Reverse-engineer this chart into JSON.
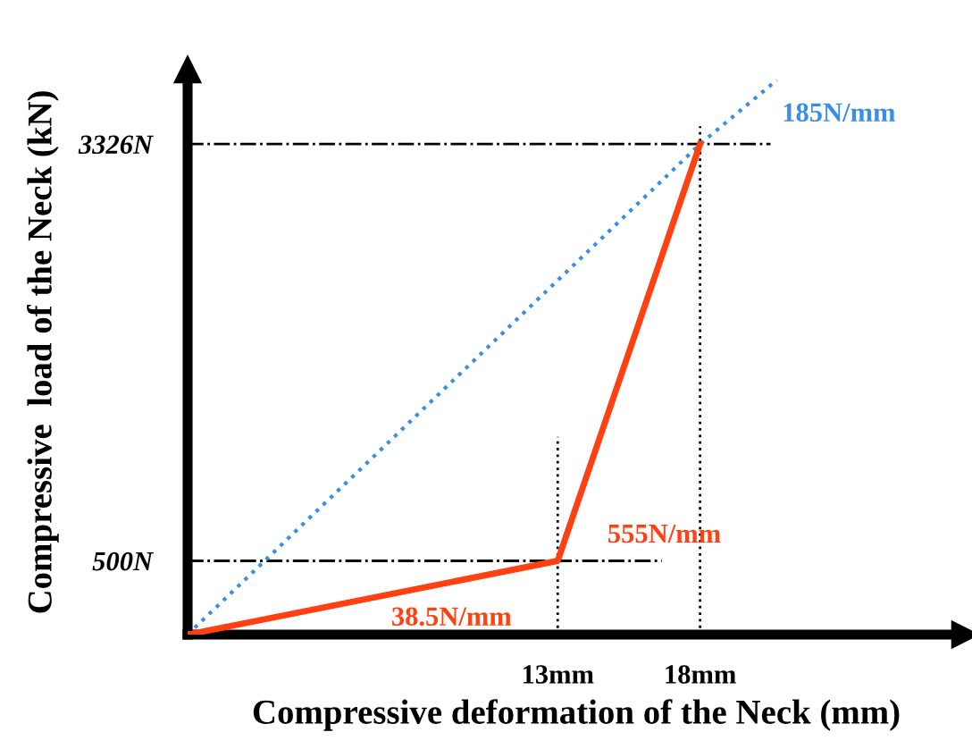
{
  "chart_data": {
    "type": "line",
    "xlabel": "Compressive deformation of the Neck (mm)",
    "ylabel": "Compressive  load of the Neck (kN)",
    "series": [
      {
        "color": "#3a8ee6",
        "x": [
          0,
          18,
          20.7
        ],
        "values": [
          0,
          3326,
          3760
        ],
        "line_style": "dotted"
      },
      {
        "color": "#ff4010",
        "x": [
          0,
          13,
          18
        ],
        "values": [
          0,
          500,
          3326
        ],
        "line_style": "solid"
      }
    ],
    "xlim": [
      0,
      27.3
    ],
    "ylim": [
      0,
      3830
    ],
    "xticks": [
      {
        "value": 13,
        "label": "13mm"
      },
      {
        "value": 18,
        "label": "18mm"
      }
    ],
    "yticks": [
      {
        "value": 500,
        "label": "500N"
      },
      {
        "value": 3326,
        "label": "3326N"
      }
    ],
    "ref_lines": [
      {
        "axis": "y",
        "value": 3326,
        "color": "#000000",
        "line_style": "dashdot"
      },
      {
        "axis": "y",
        "value": 500,
        "color": "#000000",
        "line_style": "dashdot"
      },
      {
        "axis": "x",
        "value": 13,
        "color": "#000000",
        "line_style": "dotted"
      },
      {
        "axis": "x",
        "value": 18,
        "color": "#000000",
        "line_style": "dotted"
      }
    ],
    "annotations": [
      "185N/mm",
      "555N/mm",
      "38.5N/mm"
    ],
    "grid": false,
    "legend": false,
    "marker": "none"
  }
}
